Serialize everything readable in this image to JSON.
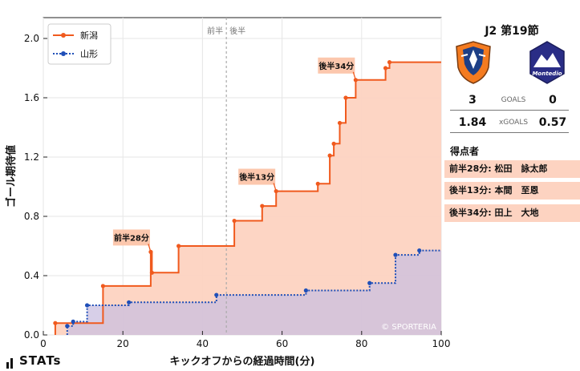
{
  "chart_data": {
    "type": "line",
    "title": "",
    "xlabel": "キックオフからの経過時間(分)",
    "ylabel": "ゴール期待値",
    "xlim": [
      0,
      100
    ],
    "ylim": [
      0,
      2.1
    ],
    "xticks": [
      "0",
      "20",
      "40",
      "60",
      "80",
      "100"
    ],
    "yticks": [
      "0.0",
      "0.4",
      "0.8",
      "1.2",
      "1.6",
      "2.0"
    ],
    "half_time_marker": {
      "x": 46,
      "left_label": "前半",
      "right_label": "後半"
    },
    "legend_position": "top-left",
    "grid": true,
    "series": [
      {
        "name": "新潟",
        "color": "#f05a1e",
        "fill": "#fdd3c1",
        "style": "solid",
        "x": [
          3,
          15,
          27,
          27.3,
          34,
          48,
          55,
          58.5,
          69,
          72,
          73,
          74.5,
          76,
          78.5,
          86,
          87,
          100
        ],
        "y": [
          0.08,
          0.33,
          0.56,
          0.42,
          0.6,
          0.77,
          0.87,
          0.97,
          1.02,
          1.21,
          1.29,
          1.43,
          1.6,
          1.72,
          1.8,
          1.84,
          1.84
        ]
      },
      {
        "name": "山形",
        "color": "#1f4fb8",
        "fill": "#c9bfe0",
        "style": "dotted",
        "x": [
          6,
          7.5,
          11,
          21.5,
          43.5,
          66,
          82,
          88.5,
          94.5,
          100
        ],
        "y": [
          0.06,
          0.09,
          0.2,
          0.22,
          0.27,
          0.3,
          0.35,
          0.54,
          0.57,
          0.57
        ]
      }
    ],
    "annotations": [
      {
        "text": "前半28分",
        "x": 27,
        "y": 0.56
      },
      {
        "text": "後半13分",
        "x": 58.5,
        "y": 0.97
      },
      {
        "text": "後半34分",
        "x": 78.5,
        "y": 1.72
      }
    ],
    "watermark": "© SPORTERIA"
  },
  "match": {
    "title": "J2 第19節",
    "home": {
      "goals": "3",
      "xg": "1.84",
      "crest": "niigata-crest"
    },
    "away": {
      "goals": "0",
      "xg": "0.57",
      "crest": "yamagata-crest"
    },
    "goals_label": "GOALS",
    "xgoals_label": "xGOALS",
    "away_crest_text": "Montedio"
  },
  "scorers": {
    "title": "得点者",
    "items": [
      "前半28分: 松田　詠太郎",
      "後半13分: 本間　至恩",
      "後半34分: 田上　大地"
    ]
  },
  "brand": {
    "name": "STATs"
  }
}
